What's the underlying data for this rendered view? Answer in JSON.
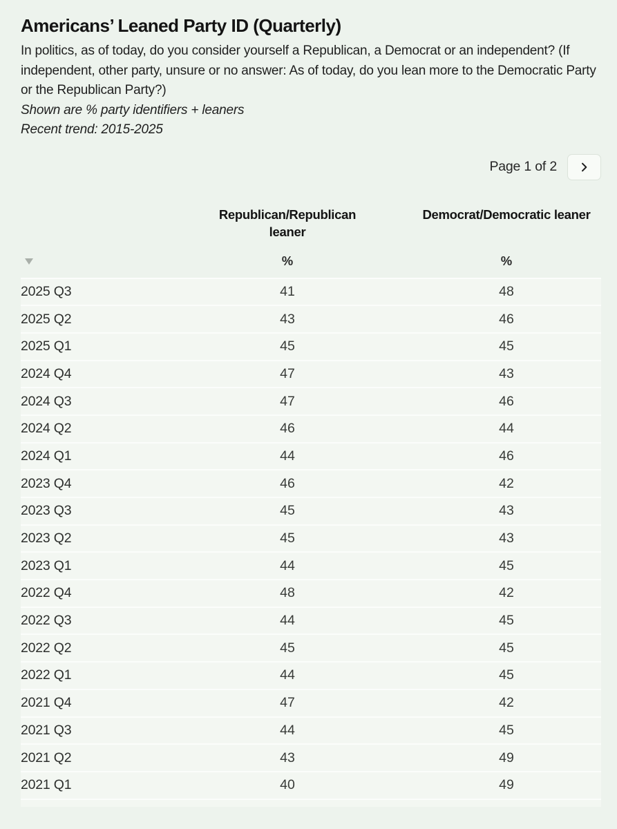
{
  "header": {
    "title": "Americans’ Leaned Party ID (Quarterly)",
    "description": "In politics, as of today, do you consider yourself a Republican, a Democrat or an independent? (If independent, other party, unsure or no answer: As of today, do you lean more to the Democratic Party or the Republican Party?)",
    "note_shown": "Shown are % party identifiers + leaners",
    "note_trend": "Recent trend: 2015-2025"
  },
  "pagination": {
    "label": "Page 1 of 2",
    "next_icon": "chevron-right-icon"
  },
  "table": {
    "columns": {
      "republican": "Republican/Republican leaner",
      "democrat": "Democrat/Democratic leaner",
      "unit_republican": "%",
      "unit_democrat": "%",
      "sort_icon": "triangle-down-icon"
    },
    "rows": [
      {
        "period": "2025 Q3",
        "rep": "41",
        "dem": "48"
      },
      {
        "period": "2025 Q2",
        "rep": "43",
        "dem": "46"
      },
      {
        "period": "2025 Q1",
        "rep": "45",
        "dem": "45"
      },
      {
        "period": "2024 Q4",
        "rep": "47",
        "dem": "43"
      },
      {
        "period": "2024 Q3",
        "rep": "47",
        "dem": "46"
      },
      {
        "period": "2024 Q2",
        "rep": "46",
        "dem": "44"
      },
      {
        "period": "2024 Q1",
        "rep": "44",
        "dem": "46"
      },
      {
        "period": "2023 Q4",
        "rep": "46",
        "dem": "42"
      },
      {
        "period": "2023 Q3",
        "rep": "45",
        "dem": "43"
      },
      {
        "period": "2023 Q2",
        "rep": "45",
        "dem": "43"
      },
      {
        "period": "2023 Q1",
        "rep": "44",
        "dem": "45"
      },
      {
        "period": "2022 Q4",
        "rep": "48",
        "dem": "42"
      },
      {
        "period": "2022 Q3",
        "rep": "44",
        "dem": "45"
      },
      {
        "period": "2022 Q2",
        "rep": "45",
        "dem": "45"
      },
      {
        "period": "2022 Q1",
        "rep": "44",
        "dem": "45"
      },
      {
        "period": "2021 Q4",
        "rep": "47",
        "dem": "42"
      },
      {
        "period": "2021 Q3",
        "rep": "44",
        "dem": "45"
      },
      {
        "period": "2021 Q2",
        "rep": "43",
        "dem": "49"
      },
      {
        "period": "2021 Q1",
        "rep": "40",
        "dem": "49"
      }
    ]
  },
  "colors": {
    "page_background": "#edf3ed",
    "row_background": "#f3f7f2",
    "divider": "#fbfdfb",
    "heading_text": "#141414",
    "cell_text": "#383b38",
    "sort_triangle": "#a9afa9",
    "button_border": "#dbe3da",
    "button_background": "#f8fbf7"
  },
  "chart_data": {
    "type": "table",
    "title": "Americans’ Leaned Party ID (Quarterly)",
    "subtitle": "In politics, as of today, do you consider yourself a Republican, a Democrat or an independent? (If independent, other party, unsure or no answer: As of today, do you lean more to the Democratic Party or the Republican Party?)",
    "note": "Shown are % party identifiers + leaners",
    "trend_range": "Recent trend: 2015-2025",
    "unit": "%",
    "categories": [
      "2025 Q3",
      "2025 Q2",
      "2025 Q1",
      "2024 Q4",
      "2024 Q3",
      "2024 Q2",
      "2024 Q1",
      "2023 Q4",
      "2023 Q3",
      "2023 Q2",
      "2023 Q1",
      "2022 Q4",
      "2022 Q3",
      "2022 Q2",
      "2022 Q1",
      "2021 Q4",
      "2021 Q3",
      "2021 Q2",
      "2021 Q1"
    ],
    "series": [
      {
        "name": "Republican/Republican leaner",
        "values": [
          41,
          43,
          45,
          47,
          47,
          46,
          44,
          46,
          45,
          45,
          44,
          48,
          44,
          45,
          44,
          47,
          44,
          43,
          40
        ]
      },
      {
        "name": "Democrat/Democratic leaner",
        "values": [
          48,
          46,
          45,
          43,
          46,
          44,
          46,
          42,
          43,
          43,
          45,
          42,
          45,
          45,
          45,
          42,
          45,
          49,
          49
        ]
      }
    ],
    "pagination": "Page 1 of 2"
  }
}
